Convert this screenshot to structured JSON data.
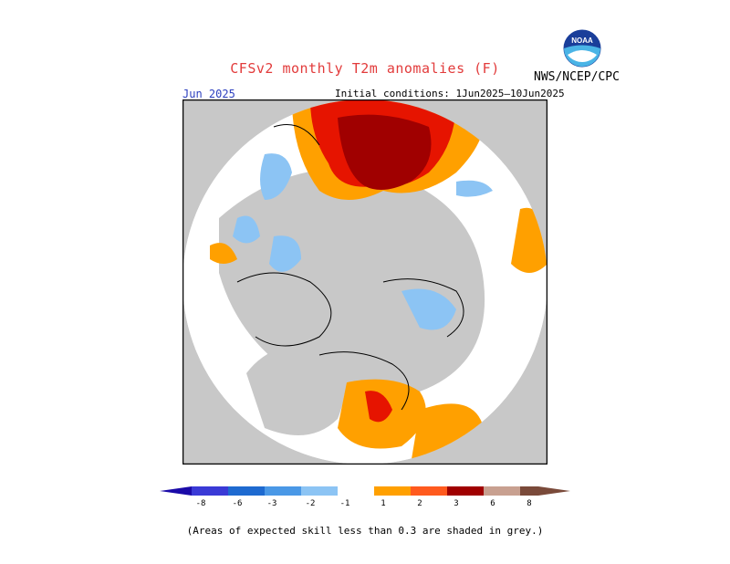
{
  "header": {
    "title": "CFSv2 monthly T2m anomalies (F)",
    "agency": "NWS/NCEP/CPC",
    "logo_text": "NOAA",
    "month": "Jun 2025",
    "initial_conditions": "Initial conditions: 1Jun2025–10Jun2025"
  },
  "legend": {
    "ticks": [
      "-8",
      "-6",
      "-3",
      "-2",
      "-1",
      "1",
      "2",
      "3",
      "6",
      "8"
    ],
    "colors": {
      "le_-8": "#1a0aa8",
      "-8_-6": "#3a3ad6",
      "-6_-3": "#1e6ad0",
      "-3_-2": "#4a98e6",
      "-2_-1": "#8cc4f4",
      "-1_1": "#ffffff",
      "1_2": "#ffa000",
      "2_3": "#ff5a1e",
      "3_6": "#e61400",
      "6_8": "#a00000",
      "8_plus": "#c8a090",
      "ge_8": "#7a4a3a"
    }
  },
  "map": {
    "projection": "north polar stereographic",
    "low_skill_color": "#c8c8c8"
  },
  "note": "(Areas of expected skill less than 0.3 are shaded in grey.)"
}
